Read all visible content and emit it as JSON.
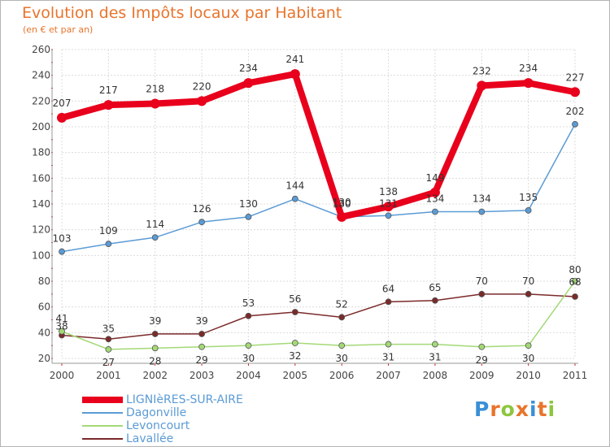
{
  "title": "Evolution des Impôts locaux par Habitant",
  "subtitle": "(en € et par an)",
  "logo": {
    "text": "Proxiti",
    "letters": [
      "P",
      "r",
      "o",
      "x",
      "i",
      "t",
      "i"
    ],
    "colors": [
      "#3a8fd6",
      "#e8742c",
      "#8cc63e",
      "#e8742c",
      "#3a8fd6",
      "#e8742c",
      "#8cc63e"
    ]
  },
  "chart_data": {
    "type": "line",
    "title": "Evolution des Impôts locaux par Habitant",
    "subtitle": "(en € et par an)",
    "xlabel": "",
    "ylabel": "",
    "x": [
      "2000",
      "2001",
      "2002",
      "2003",
      "2004",
      "2005",
      "2006",
      "2007",
      "2008",
      "2009",
      "2010",
      "2011"
    ],
    "ylim": [
      20,
      260
    ],
    "yticks": [
      "20",
      "40",
      "60",
      "80",
      "100",
      "120",
      "140",
      "160",
      "180",
      "200",
      "220",
      "240",
      "260"
    ],
    "grid": true,
    "legend_position": "bottom-left",
    "series": [
      {
        "name": "LIGNIèRES-SUR-AIRE",
        "color": "#e8001c",
        "values": [
          207,
          217,
          218,
          220,
          234,
          241,
          130,
          138,
          149,
          232,
          234,
          227
        ],
        "labels": [
          "207",
          "217",
          "218",
          "220",
          "234",
          "241",
          "130",
          "138",
          "149",
          "232",
          "234",
          "227"
        ]
      },
      {
        "name": "Dagonville",
        "color": "#5b9bd5",
        "values": [
          103,
          109,
          114,
          126,
          130,
          144,
          130,
          131,
          134,
          134,
          135,
          202
        ],
        "labels": [
          "103",
          "109",
          "114",
          "126",
          "130",
          "144",
          "130",
          "131",
          "134",
          "134",
          "135",
          "202"
        ]
      },
      {
        "name": "Levoncourt",
        "color": "#a3d977",
        "values": [
          41,
          27,
          28,
          29,
          30,
          32,
          30,
          31,
          31,
          29,
          30,
          80
        ],
        "labels": [
          "41",
          "27",
          "28",
          "29",
          "30",
          "32",
          "30",
          "31",
          "31",
          "29",
          "30",
          "80"
        ]
      },
      {
        "name": "Lavallée",
        "color": "#7b2a2a",
        "values": [
          38,
          35,
          39,
          39,
          53,
          56,
          52,
          64,
          65,
          70,
          70,
          68
        ],
        "labels": [
          "38",
          "35",
          "39",
          "39",
          "53",
          "56",
          "52",
          "64",
          "65",
          "70",
          "70",
          "68"
        ]
      }
    ]
  }
}
